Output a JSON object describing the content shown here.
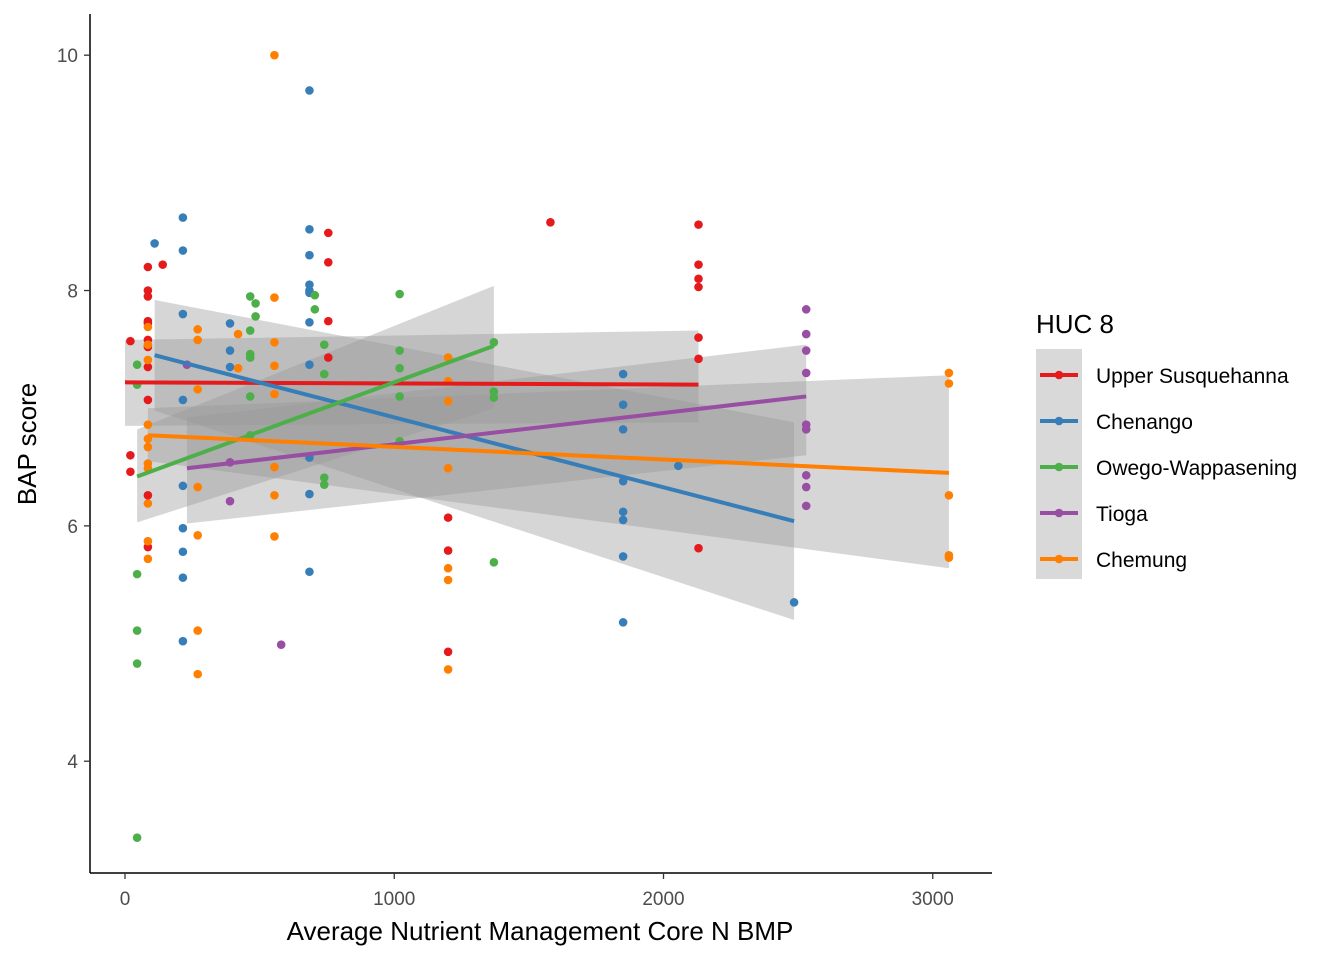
{
  "chart_data": {
    "type": "scatter",
    "title": "",
    "xlabel": "Average Nutrient Management Core N BMP",
    "ylabel": "BAP score",
    "xlim": [
      -130,
      3220
    ],
    "ylim": [
      3.05,
      10.35
    ],
    "x_ticks": [
      0,
      1000,
      2000,
      3000
    ],
    "y_ticks": [
      4,
      6,
      8,
      10
    ],
    "grid": false,
    "legend": {
      "title": "HUC 8",
      "placement": "right"
    },
    "series": [
      {
        "name": "Upper Susquehanna",
        "color": "#e41a1c",
        "points": [
          [
            20,
            7.57
          ],
          [
            20,
            6.6
          ],
          [
            20,
            6.46
          ],
          [
            85,
            8.2
          ],
          [
            85,
            8.0
          ],
          [
            85,
            7.95
          ],
          [
            85,
            7.74
          ],
          [
            85,
            7.72
          ],
          [
            85,
            7.58
          ],
          [
            85,
            7.52
          ],
          [
            85,
            7.35
          ],
          [
            85,
            7.07
          ],
          [
            85,
            6.26
          ],
          [
            85,
            5.82
          ],
          [
            140,
            8.22
          ],
          [
            755,
            8.49
          ],
          [
            755,
            8.24
          ],
          [
            755,
            7.74
          ],
          [
            755,
            7.43
          ],
          [
            1200,
            6.07
          ],
          [
            1200,
            5.79
          ],
          [
            1200,
            4.93
          ],
          [
            1580,
            8.58
          ],
          [
            2130,
            8.56
          ],
          [
            2130,
            8.22
          ],
          [
            2130,
            8.1
          ],
          [
            2130,
            8.03
          ],
          [
            2130,
            7.6
          ],
          [
            2130,
            7.42
          ],
          [
            2130,
            5.81
          ]
        ],
        "trend": {
          "x": [
            0,
            2130
          ],
          "y": [
            7.22,
            7.2
          ],
          "ci_lower": [
            6.85,
            6.88
          ],
          "ci_upper": [
            7.58,
            7.66
          ]
        }
      },
      {
        "name": "Chenango",
        "color": "#377eb8",
        "points": [
          [
            110,
            8.4
          ],
          [
            215,
            8.62
          ],
          [
            215,
            8.34
          ],
          [
            215,
            7.8
          ],
          [
            215,
            7.07
          ],
          [
            215,
            6.34
          ],
          [
            215,
            5.98
          ],
          [
            215,
            5.78
          ],
          [
            215,
            5.56
          ],
          [
            215,
            5.02
          ],
          [
            390,
            7.72
          ],
          [
            390,
            7.49
          ],
          [
            390,
            7.35
          ],
          [
            685,
            9.7
          ],
          [
            685,
            8.52
          ],
          [
            685,
            8.3
          ],
          [
            685,
            8.05
          ],
          [
            685,
            8.0
          ],
          [
            685,
            7.98
          ],
          [
            685,
            7.73
          ],
          [
            685,
            7.37
          ],
          [
            685,
            6.58
          ],
          [
            685,
            6.27
          ],
          [
            685,
            5.61
          ],
          [
            1850,
            7.29
          ],
          [
            1850,
            7.03
          ],
          [
            1850,
            6.82
          ],
          [
            1850,
            6.38
          ],
          [
            1850,
            6.12
          ],
          [
            1850,
            6.05
          ],
          [
            1850,
            5.74
          ],
          [
            1850,
            5.18
          ],
          [
            2055,
            6.51
          ],
          [
            2485,
            5.35
          ]
        ],
        "trend": {
          "x": [
            110,
            2485
          ],
          "y": [
            7.45,
            6.04
          ],
          "ci_lower": [
            6.98,
            5.2
          ],
          "ci_upper": [
            7.92,
            6.88
          ]
        }
      },
      {
        "name": "Owego-Wappasening",
        "color": "#4daf4a",
        "points": [
          [
            45,
            7.37
          ],
          [
            45,
            7.2
          ],
          [
            45,
            5.59
          ],
          [
            45,
            5.11
          ],
          [
            45,
            4.83
          ],
          [
            45,
            3.35
          ],
          [
            465,
            7.95
          ],
          [
            465,
            7.66
          ],
          [
            465,
            7.46
          ],
          [
            465,
            7.43
          ],
          [
            465,
            7.1
          ],
          [
            465,
            6.77
          ],
          [
            485,
            7.89
          ],
          [
            485,
            7.78
          ],
          [
            705,
            7.96
          ],
          [
            705,
            7.84
          ],
          [
            740,
            7.54
          ],
          [
            740,
            7.29
          ],
          [
            740,
            6.41
          ],
          [
            740,
            6.35
          ],
          [
            1020,
            7.97
          ],
          [
            1020,
            7.49
          ],
          [
            1020,
            7.34
          ],
          [
            1020,
            7.1
          ],
          [
            1020,
            6.72
          ],
          [
            1370,
            7.56
          ],
          [
            1370,
            7.14
          ],
          [
            1370,
            7.09
          ],
          [
            1370,
            5.69
          ]
        ],
        "trend": {
          "x": [
            45,
            1370
          ],
          "y": [
            6.42,
            7.53
          ],
          "ci_lower": [
            6.03,
            7.0
          ],
          "ci_upper": [
            6.82,
            8.04
          ]
        }
      },
      {
        "name": "Tioga",
        "color": "#984ea3",
        "points": [
          [
            230,
            7.37
          ],
          [
            390,
            6.21
          ],
          [
            390,
            6.54
          ],
          [
            580,
            4.99
          ],
          [
            2530,
            7.84
          ],
          [
            2530,
            7.63
          ],
          [
            2530,
            7.49
          ],
          [
            2530,
            7.3
          ],
          [
            2530,
            6.86
          ],
          [
            2530,
            6.82
          ],
          [
            2530,
            6.43
          ],
          [
            2530,
            6.33
          ],
          [
            2530,
            6.17
          ]
        ],
        "trend": {
          "x": [
            230,
            2530
          ],
          "y": [
            6.49,
            7.1
          ],
          "ci_lower": [
            6.02,
            6.6
          ],
          "ci_upper": [
            6.92,
            7.54
          ]
        }
      },
      {
        "name": "Chemung",
        "color": "#ff7f00",
        "points": [
          [
            85,
            7.69
          ],
          [
            85,
            7.54
          ],
          [
            85,
            7.41
          ],
          [
            85,
            6.86
          ],
          [
            85,
            6.74
          ],
          [
            85,
            6.67
          ],
          [
            85,
            6.53
          ],
          [
            85,
            6.49
          ],
          [
            85,
            6.19
          ],
          [
            85,
            5.87
          ],
          [
            85,
            5.72
          ],
          [
            270,
            7.67
          ],
          [
            270,
            7.58
          ],
          [
            270,
            7.16
          ],
          [
            270,
            6.33
          ],
          [
            270,
            5.92
          ],
          [
            270,
            5.11
          ],
          [
            270,
            4.74
          ],
          [
            420,
            7.63
          ],
          [
            420,
            7.34
          ],
          [
            555,
            10.0
          ],
          [
            555,
            7.94
          ],
          [
            555,
            7.56
          ],
          [
            555,
            7.36
          ],
          [
            555,
            7.12
          ],
          [
            555,
            6.5
          ],
          [
            555,
            6.26
          ],
          [
            555,
            5.91
          ],
          [
            1200,
            7.43
          ],
          [
            1200,
            7.23
          ],
          [
            1200,
            7.06
          ],
          [
            1200,
            6.49
          ],
          [
            1200,
            5.64
          ],
          [
            1200,
            5.54
          ],
          [
            1200,
            4.78
          ],
          [
            3060,
            7.3
          ],
          [
            3060,
            7.21
          ],
          [
            3060,
            6.26
          ],
          [
            3060,
            5.75
          ],
          [
            3060,
            5.73
          ]
        ],
        "trend": {
          "x": [
            85,
            3060
          ],
          "y": [
            6.77,
            6.45
          ],
          "ci_lower": [
            6.55,
            5.64
          ],
          "ci_upper": [
            7.0,
            7.28
          ]
        }
      }
    ]
  }
}
